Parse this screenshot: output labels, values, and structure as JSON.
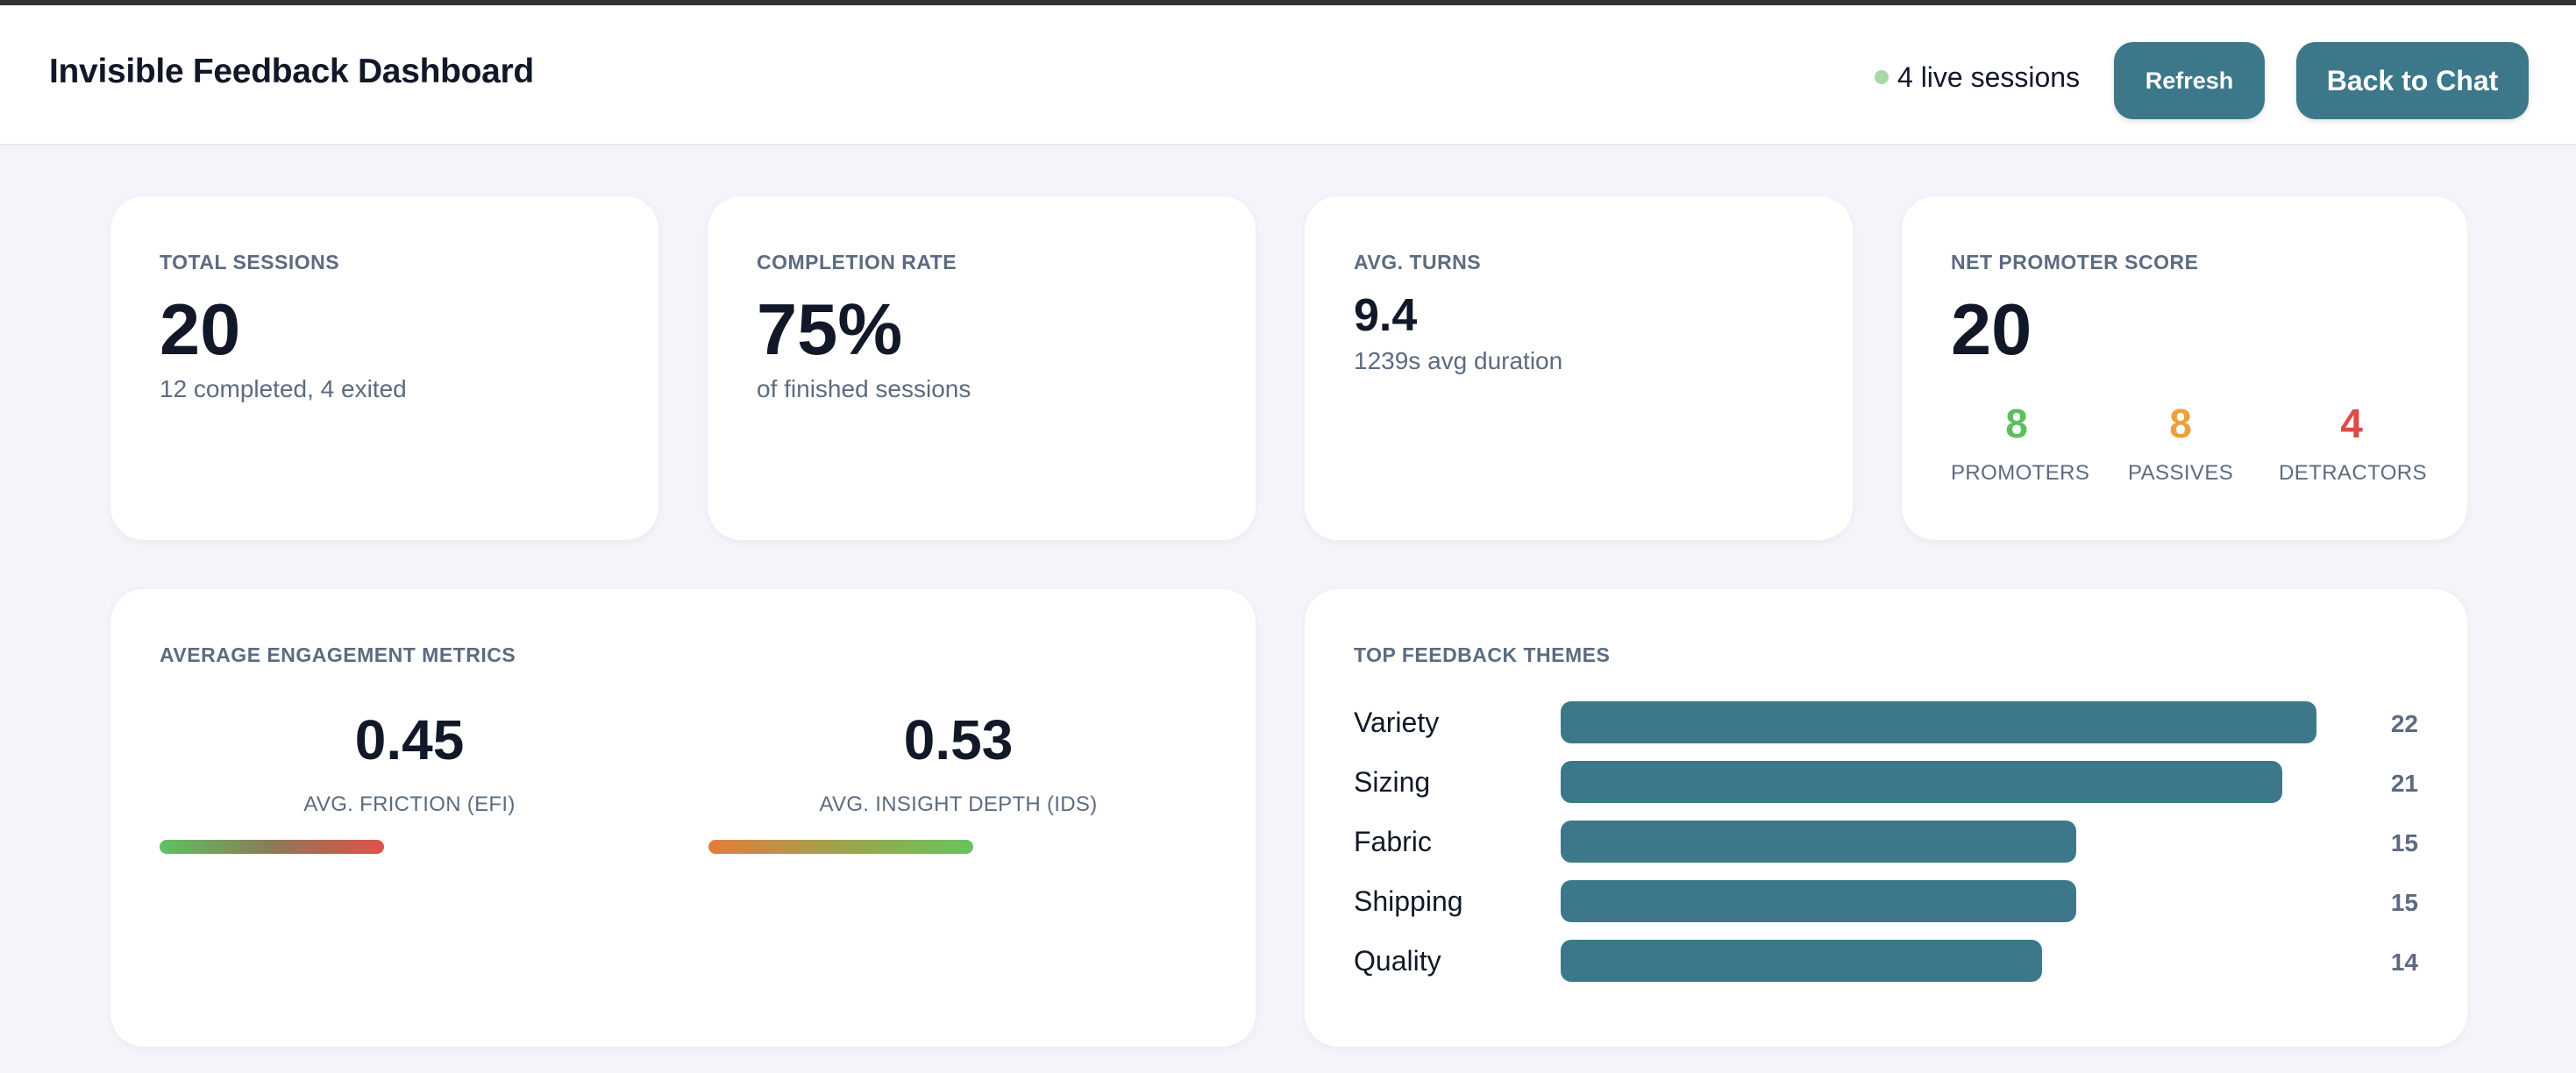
{
  "header": {
    "title": "Invisible Feedback Dashboard",
    "live_sessions": "4 live sessions",
    "refresh_label": "Refresh",
    "back_label": "Back to Chat"
  },
  "stats": {
    "total_sessions": {
      "label": "TOTAL SESSIONS",
      "value": "20",
      "sub": "12 completed, 4 exited"
    },
    "completion_rate": {
      "label": "COMPLETION RATE",
      "value": "75%",
      "sub": "of finished sessions"
    },
    "avg_turns": {
      "label": "AVG. TURNS",
      "value": "9.4",
      "sub": "1239s avg duration"
    },
    "nps": {
      "label": "NET PROMOTER SCORE",
      "value": "20",
      "promoters": {
        "value": "8",
        "label": "PROMOTERS",
        "color": "#5cbf5f"
      },
      "passives": {
        "value": "8",
        "label": "PASSIVES",
        "color": "#eba23a"
      },
      "detractors": {
        "value": "4",
        "label": "DETRACTORS",
        "color": "#dd4b45"
      }
    }
  },
  "engagement": {
    "title": "AVERAGE ENGAGEMENT METRICS",
    "friction": {
      "value": "0.45",
      "label": "AVG. FRICTION (EFI)",
      "level": 0.45
    },
    "insight": {
      "value": "0.53",
      "label": "AVG. INSIGHT DEPTH (IDS)",
      "level": 0.53
    }
  },
  "themes": {
    "title": "TOP FEEDBACK THEMES",
    "items": [
      {
        "name": "Variety",
        "count": 22
      },
      {
        "name": "Sizing",
        "count": 21
      },
      {
        "name": "Fabric",
        "count": 15
      },
      {
        "name": "Shipping",
        "count": 15
      },
      {
        "name": "Quality",
        "count": 14
      }
    ]
  },
  "colors": {
    "accent": "#3c7889",
    "live_dot": "#a7d8a5"
  }
}
